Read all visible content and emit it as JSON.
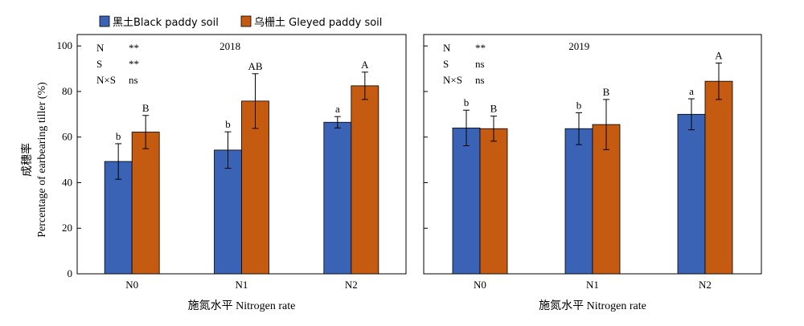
{
  "legend": [
    {
      "label": "黑土Black paddy soil",
      "color": "#3b63b5"
    },
    {
      "label": "乌栅土 Gleyed paddy soil",
      "color": "#c55a11"
    }
  ],
  "y_label_cn": "成穗率",
  "y_label_en": "Percentage of earbearing tiller (%)",
  "chart_data": [
    {
      "type": "bar",
      "title": "2018",
      "xlabel": "施氮水平 Nitrogen rate",
      "ylabel": "成穗率 Percentage of earbearing tiller (%)",
      "ylim": [
        0,
        105
      ],
      "yticks": [
        0,
        20,
        40,
        60,
        80,
        100
      ],
      "categories": [
        "N0",
        "N1",
        "N2"
      ],
      "series": [
        {
          "name": "黑土Black paddy soil",
          "color": "#3b63b5",
          "values": [
            49.3,
            54.3,
            66.5
          ],
          "errors": [
            7.8,
            8.0,
            2.5
          ],
          "letters": [
            "b",
            "b",
            "a"
          ]
        },
        {
          "name": "乌栅土 Gleyed paddy soil",
          "color": "#c55a11",
          "values": [
            62.2,
            75.8,
            82.5
          ],
          "errors": [
            7.3,
            12.0,
            6.0
          ],
          "letters": [
            "B",
            "AB",
            "A"
          ]
        }
      ],
      "anova": [
        {
          "factor": "N",
          "sig": "**"
        },
        {
          "factor": "S",
          "sig": "**"
        },
        {
          "factor": "N×S",
          "sig": "ns"
        }
      ]
    },
    {
      "type": "bar",
      "title": "2019",
      "xlabel": "施氮水平 Nitrogen rate",
      "ylabel": "",
      "ylim": [
        0,
        105
      ],
      "yticks": [
        0,
        20,
        40,
        60,
        80,
        100
      ],
      "categories": [
        "N0",
        "N1",
        "N2"
      ],
      "series": [
        {
          "name": "黑土Black paddy soil",
          "color": "#3b63b5",
          "values": [
            64.0,
            63.7,
            70.0
          ],
          "errors": [
            7.8,
            7.0,
            6.8
          ],
          "letters": [
            "b",
            "b",
            "a"
          ]
        },
        {
          "name": "乌栅土 Gleyed paddy soil",
          "color": "#c55a11",
          "values": [
            63.7,
            65.5,
            84.5
          ],
          "errors": [
            5.5,
            11.0,
            8.0
          ],
          "letters": [
            "B",
            "B",
            "A"
          ]
        }
      ],
      "anova": [
        {
          "factor": "N",
          "sig": "**"
        },
        {
          "factor": "S",
          "sig": "ns"
        },
        {
          "factor": "N×S",
          "sig": "ns"
        }
      ]
    }
  ]
}
